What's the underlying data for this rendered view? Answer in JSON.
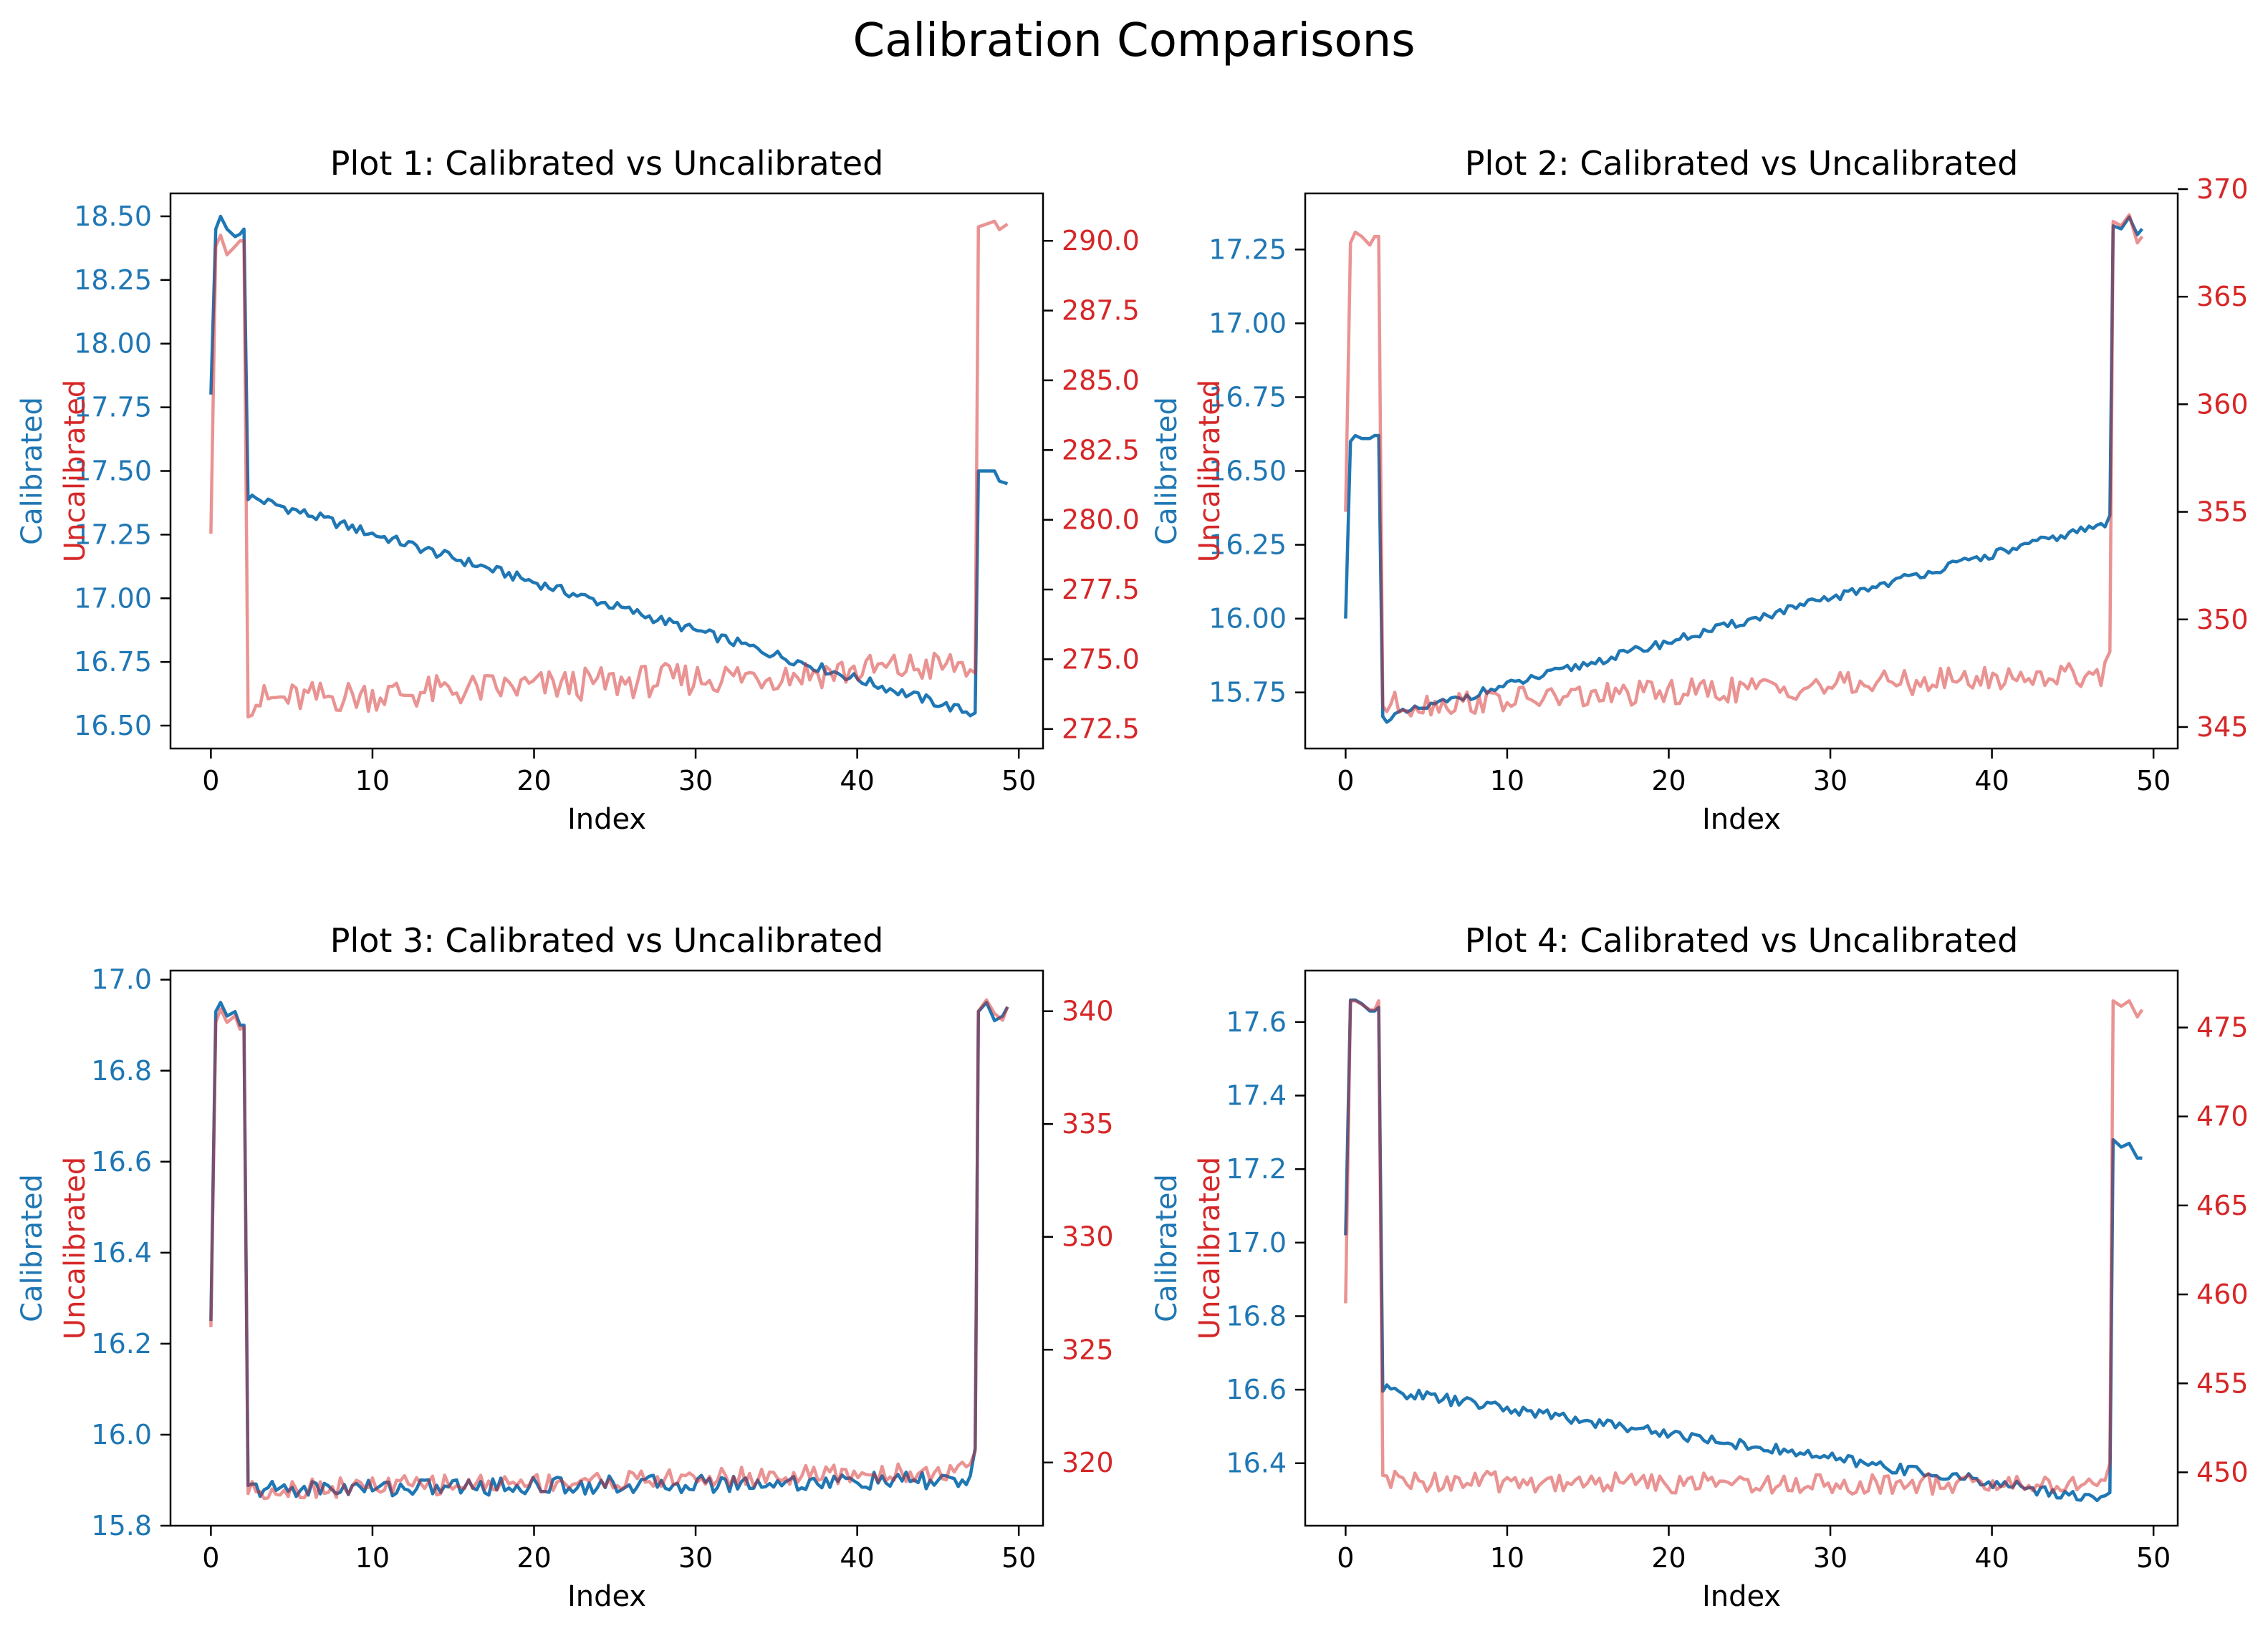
{
  "title": "Calibration Comparisons",
  "colors": {
    "calibrated": "#1f77b4",
    "uncalibrated": "#d62728",
    "uncalibrated_line": "#e88a8b",
    "axis": "#000000"
  },
  "chart_data": [
    {
      "type": "line",
      "title": "Plot 1: Calibrated vs Uncalibrated",
      "xlabel": "Index",
      "ylabel": "Calibrated",
      "y2label": "Uncalibrated",
      "xlim": [
        -2.5,
        51.5
      ],
      "ylim": [
        16.41,
        18.59
      ],
      "y2lim": [
        271.8,
        291.7
      ],
      "xticks": [
        0,
        10,
        20,
        30,
        40,
        50
      ],
      "yticks": [
        "16.50",
        "16.75",
        "17.00",
        "17.25",
        "17.50",
        "17.75",
        "18.00",
        "18.25",
        "18.50"
      ],
      "y2ticks": [
        "272.5",
        "275.0",
        "277.5",
        "280.0",
        "282.5",
        "285.0",
        "287.5",
        "290.0"
      ],
      "series": [
        {
          "name": "Calibrated",
          "axis": "left",
          "shape": "first",
          "x": [
            0,
            0.3,
            0.6,
            1,
            1.5,
            1.8,
            2.05
          ],
          "values": [
            17.8,
            18.45,
            18.5,
            18.45,
            18.42,
            18.43,
            18.45
          ],
          "baseline": {
            "from": 17.4,
            "to": 16.55
          },
          "noise": 0.02,
          "tail": {
            "x": [
              47.3,
              47.5,
              48.5,
              48.8,
              49.3
            ],
            "values": [
              16.55,
              17.5,
              17.5,
              17.46,
              17.45
            ]
          }
        },
        {
          "name": "Uncalibrated",
          "axis": "right",
          "shape": "first",
          "x": [
            0,
            0.3,
            0.6,
            1,
            1.5,
            1.8,
            2.05
          ],
          "values": [
            279.5,
            289.8,
            290.2,
            289.5,
            289.8,
            290.0,
            290.0
          ],
          "baseline": {
            "from": 273.5,
            "to": 274.8
          },
          "noise": 0.6,
          "tail": {
            "x": [
              47.3,
              47.5,
              48.5,
              48.8,
              49.3
            ],
            "values": [
              274.5,
              290.5,
              290.7,
              290.4,
              290.6
            ]
          }
        }
      ]
    },
    {
      "type": "line",
      "title": "Plot 2: Calibrated vs Uncalibrated",
      "xlabel": "Index",
      "ylabel": "Calibrated",
      "y2label": "Uncalibrated",
      "xlim": [
        -2.5,
        51.5
      ],
      "ylim": [
        15.56,
        17.44
      ],
      "y2lim": [
        344.0,
        369.8
      ],
      "xticks": [
        0,
        10,
        20,
        30,
        40,
        50
      ],
      "yticks": [
        "15.75",
        "16.00",
        "16.25",
        "16.50",
        "16.75",
        "17.00",
        "17.25"
      ],
      "y2ticks": [
        "345",
        "350",
        "355",
        "360",
        "365",
        "370"
      ],
      "series": [
        {
          "name": "Calibrated",
          "axis": "left",
          "x": [
            0,
            0.3,
            0.6,
            1,
            1.5,
            1.8,
            2.05
          ],
          "values": [
            16.0,
            16.6,
            16.62,
            16.61,
            16.61,
            16.62,
            16.62
          ],
          "baseline": {
            "from": 15.66,
            "to": 16.32
          },
          "noise": 0.015,
          "tail": {
            "x": [
              47.3,
              47.5,
              48.0,
              48.5,
              49.0,
              49.3
            ],
            "values": [
              16.35,
              17.33,
              17.32,
              17.36,
              17.3,
              17.32
            ]
          }
        },
        {
          "name": "Uncalibrated",
          "axis": "right",
          "x": [
            0,
            0.3,
            0.6,
            1,
            1.5,
            1.8,
            2.05
          ],
          "values": [
            355,
            367.5,
            368.0,
            367.8,
            367.4,
            367.8,
            367.8
          ],
          "baseline": {
            "from": 346.0,
            "to": 347.5
          },
          "noise": 0.6,
          "tail": {
            "x": [
              47.3,
              47.5,
              48.0,
              48.5,
              49.0,
              49.3
            ],
            "values": [
              348.5,
              368.5,
              368.3,
              368.8,
              367.5,
              367.8
            ]
          }
        }
      ]
    },
    {
      "type": "line",
      "title": "Plot 3: Calibrated vs Uncalibrated",
      "xlabel": "Index",
      "ylabel": "Calibrated",
      "y2label": "Uncalibrated",
      "xlim": [
        -2.5,
        51.5
      ],
      "ylim": [
        15.8,
        17.02
      ],
      "y2lim": [
        317.2,
        341.8
      ],
      "xticks": [
        0,
        10,
        20,
        30,
        40,
        50
      ],
      "yticks": [
        "15.8",
        "16.0",
        "16.2",
        "16.4",
        "16.6",
        "16.8",
        "17.0"
      ],
      "y2ticks": [
        "320",
        "325",
        "330",
        "335",
        "340"
      ],
      "series": [
        {
          "name": "Calibrated",
          "axis": "left",
          "x": [
            0,
            0.3,
            0.6,
            1,
            1.5,
            1.8,
            2.05
          ],
          "values": [
            16.25,
            16.93,
            16.95,
            16.92,
            16.93,
            16.9,
            16.9
          ],
          "baseline": {
            "from": 15.88,
            "to": 15.9
          },
          "noise": 0.02,
          "tail": {
            "x": [
              47.3,
              47.5,
              48.0,
              48.5,
              49.0,
              49.3
            ],
            "values": [
              15.97,
              16.93,
              16.95,
              16.91,
              16.92,
              16.94
            ]
          }
        },
        {
          "name": "Uncalibrated",
          "axis": "right",
          "x": [
            0,
            0.3,
            0.6,
            1,
            1.5,
            1.8,
            2.05
          ],
          "values": [
            326,
            339.5,
            340.1,
            339.5,
            339.8,
            339.2,
            339.3
          ],
          "baseline": {
            "from": 318.8,
            "to": 319.6
          },
          "noise": 0.45,
          "tail": {
            "x": [
              47.3,
              47.5,
              48.0,
              48.5,
              49.0,
              49.3
            ],
            "values": [
              320.5,
              340.0,
              340.5,
              339.9,
              339.6,
              340.2
            ]
          }
        }
      ]
    },
    {
      "type": "line",
      "title": "Plot 4: Calibrated vs Uncalibrated",
      "xlabel": "Index",
      "ylabel": "Calibrated",
      "y2label": "Uncalibrated",
      "xlim": [
        -2.5,
        51.5
      ],
      "ylim": [
        16.23,
        17.74
      ],
      "y2lim": [
        447.0,
        478.2
      ],
      "xticks": [
        0,
        10,
        20,
        30,
        40,
        50
      ],
      "yticks": [
        "16.4",
        "16.6",
        "16.8",
        "17.0",
        "17.2",
        "17.4",
        "17.6"
      ],
      "y2ticks": [
        "450",
        "455",
        "460",
        "465",
        "470",
        "475"
      ],
      "series": [
        {
          "name": "Calibrated",
          "axis": "left",
          "x": [
            0,
            0.3,
            0.6,
            1,
            1.5,
            1.8,
            2.05
          ],
          "values": [
            17.02,
            17.66,
            17.66,
            17.65,
            17.63,
            17.63,
            17.64
          ],
          "baseline": {
            "from": 16.6,
            "to": 16.3
          },
          "noise": 0.015,
          "tail": {
            "x": [
              47.3,
              47.5,
              48.0,
              48.5,
              49.0,
              49.3
            ],
            "values": [
              16.32,
              17.28,
              17.26,
              17.27,
              17.23,
              17.23
            ]
          }
        },
        {
          "name": "Uncalibrated",
          "axis": "right",
          "x": [
            0,
            0.3,
            0.6,
            1,
            1.5,
            1.8,
            2.05
          ],
          "values": [
            459.5,
            476.5,
            476.5,
            476.3,
            476.0,
            476.0,
            476.5
          ],
          "baseline": {
            "from": 449.5,
            "to": 449.3
          },
          "noise": 0.6,
          "tail": {
            "x": [
              47.3,
              47.5,
              48.0,
              48.5,
              49.0,
              49.3
            ],
            "values": [
              450.5,
              476.5,
              476.2,
              476.5,
              475.6,
              476.0
            ]
          }
        }
      ]
    }
  ]
}
